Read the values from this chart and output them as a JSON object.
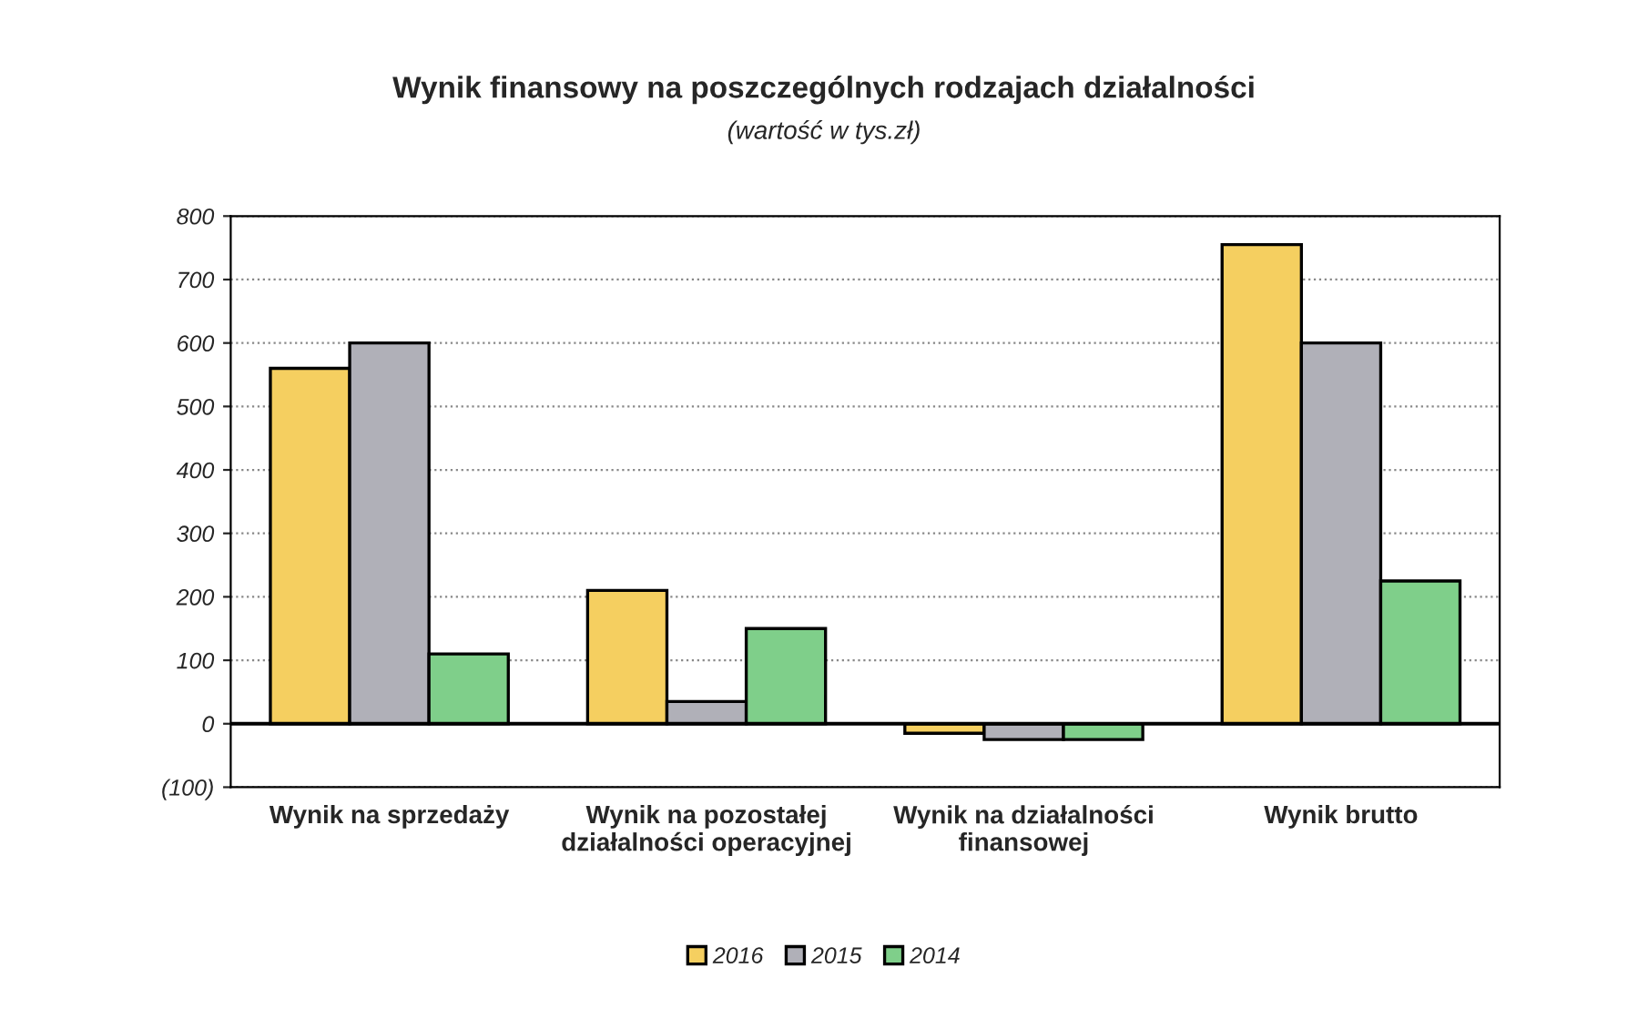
{
  "chart_data": {
    "type": "bar",
    "title": "Wynik finansowy na poszczególnych rodzajach działalności",
    "subtitle": "(wartość w tys.zł)",
    "categories": [
      "Wynik na sprzedaży",
      "Wynik na pozostałej\ndziałalności operacyjnej",
      "Wynik na działalności\nfinansowej",
      "Wynik brutto"
    ],
    "series": [
      {
        "name": "2016",
        "color": "#f5cf60",
        "values": [
          560,
          210,
          -15,
          755
        ]
      },
      {
        "name": "2015",
        "color": "#b0b0b8",
        "values": [
          600,
          35,
          -25,
          600
        ]
      },
      {
        "name": "2014",
        "color": "#7fcf8a",
        "values": [
          110,
          150,
          -25,
          225
        ]
      }
    ],
    "ylim": [
      -100,
      800
    ],
    "yticks": [
      {
        "value": -100,
        "label": "(100)"
      },
      0,
      100,
      200,
      300,
      400,
      500,
      600,
      700,
      800
    ],
    "grid": "y",
    "legend": "bottom"
  }
}
